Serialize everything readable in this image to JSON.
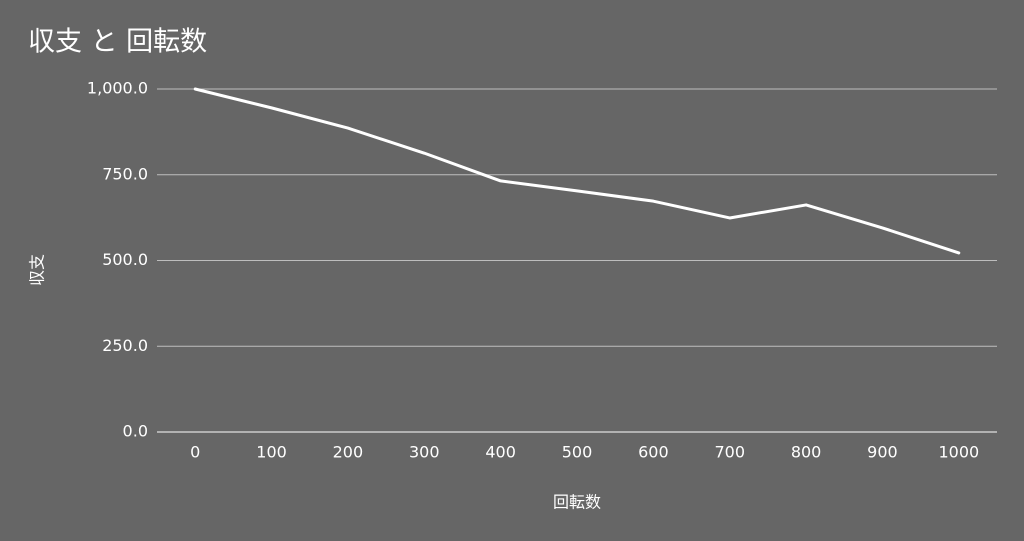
{
  "chart_data": {
    "type": "line",
    "title": "収支 と 回転数",
    "x_label": "回転数",
    "y_label": "収支",
    "categories": [
      "0",
      "100",
      "200",
      "300",
      "400",
      "500",
      "600",
      "700",
      "800",
      "900",
      "1000"
    ],
    "series": [
      {
        "name": "収支",
        "color": "#ffffff",
        "values": [
          1000,
          945,
          886,
          813,
          732,
          703,
          673,
          624,
          662,
          595,
          522
        ]
      }
    ],
    "ylim": [
      0,
      1000
    ],
    "yticks": [
      {
        "value": 0,
        "label": "0.0"
      },
      {
        "value": 250,
        "label": "250.0"
      },
      {
        "value": 500,
        "label": "500.0"
      },
      {
        "value": 750,
        "label": "750.0"
      },
      {
        "value": 1000,
        "label": "1,000.0"
      }
    ],
    "grid": true
  }
}
